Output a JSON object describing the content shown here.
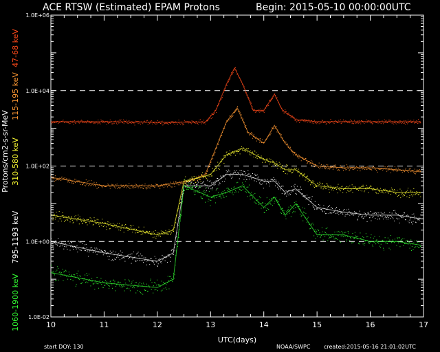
{
  "chart_data": {
    "type": "scatter",
    "title": "ACE RTSW (Estimated) EPAM Protons",
    "begin_label": "Begin: 2015-05-10 00:00:00UTC",
    "xlabel": "UTC(days)",
    "ylabel": "Protons/cm2-s-sr-MeV",
    "log_y": true,
    "xlim": [
      10,
      17
    ],
    "ylim": [
      0.01,
      1000000
    ],
    "x_ticks": [
      "10",
      "11",
      "12",
      "13",
      "14",
      "15",
      "16",
      "17"
    ],
    "y_ticks": [
      "1.0E-02",
      "1.0E+00",
      "1.0E+02",
      "1.0E+04",
      "1.0E+06"
    ],
    "dashed_gridlines_y": [
      1,
      100,
      10000
    ],
    "footer_left": "start DOY:  130",
    "footer_org": "NOAA/SWPC",
    "footer_created": "created:2015-05-16 21:01:02UTC",
    "series": [
      {
        "name": "47-68 keV",
        "color": "#ff4a1a",
        "x": [
          10.0,
          11.0,
          12.0,
          12.9,
          13.1,
          13.3,
          13.45,
          13.6,
          13.8,
          14.0,
          14.2,
          14.35,
          14.6,
          15.0,
          15.5,
          16.0,
          16.5,
          16.95
        ],
        "y": [
          1500,
          1500,
          1450,
          1450,
          3000,
          15000,
          40000,
          15000,
          3000,
          3000,
          8000,
          3000,
          1700,
          1500,
          1500,
          1500,
          1500,
          1500
        ]
      },
      {
        "name": "115-195 keV",
        "color": "#ff9933",
        "x": [
          10.0,
          11.0,
          12.0,
          12.6,
          12.9,
          13.1,
          13.3,
          13.5,
          13.7,
          14.0,
          14.2,
          14.4,
          14.6,
          15.0,
          15.5,
          16.0,
          16.5,
          16.95
        ],
        "y": [
          50,
          30,
          30,
          40,
          60,
          300,
          1500,
          3500,
          800,
          400,
          1200,
          400,
          200,
          100,
          90,
          90,
          80,
          70
        ]
      },
      {
        "name": "310-580 keV",
        "color": "#ffff33",
        "x": [
          10.0,
          11.0,
          12.0,
          12.3,
          12.5,
          12.8,
          13.0,
          13.3,
          13.6,
          14.0,
          14.2,
          14.4,
          14.6,
          15.0,
          15.5,
          16.0,
          16.5,
          16.95
        ],
        "y": [
          5,
          3,
          1.5,
          2,
          40,
          50,
          60,
          200,
          300,
          150,
          120,
          80,
          80,
          30,
          25,
          25,
          20,
          20
        ]
      },
      {
        "name": "795-1193 keV",
        "color": "#ffffff",
        "x": [
          10.0,
          11.0,
          12.0,
          12.3,
          12.5,
          12.8,
          13.0,
          13.3,
          13.6,
          14.0,
          14.2,
          14.4,
          14.6,
          15.0,
          15.5,
          16.0,
          16.5,
          16.95
        ],
        "y": [
          1,
          0.5,
          0.3,
          0.5,
          30,
          30,
          30,
          60,
          60,
          40,
          40,
          20,
          25,
          8,
          6,
          5,
          5,
          4
        ]
      },
      {
        "name": "1060-1900 keV",
        "color": "#33ff33",
        "x": [
          10.0,
          11.0,
          12.0,
          12.3,
          12.5,
          12.8,
          13.0,
          13.3,
          13.6,
          14.0,
          14.2,
          14.4,
          14.6,
          15.0,
          15.5,
          16.0,
          16.5,
          16.95
        ],
        "y": [
          0.15,
          0.08,
          0.06,
          0.1,
          30,
          20,
          15,
          20,
          30,
          8,
          15,
          5,
          10,
          1.5,
          1.5,
          1,
          1,
          0.8
        ]
      }
    ]
  }
}
